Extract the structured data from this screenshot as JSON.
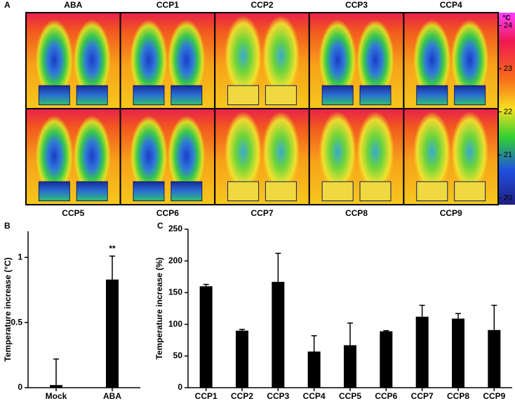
{
  "panel_a": {
    "label": "A",
    "top_labels": [
      "ABA",
      "CCP1",
      "CCP2",
      "CCP3",
      "CCP4"
    ],
    "bottom_labels": [
      "CCP5",
      "CCP6",
      "CCP7",
      "CCP8",
      "CCP9"
    ],
    "colorbar": {
      "unit": "°C",
      "lim": [
        19.85,
        24.3
      ],
      "ticks": [
        24,
        23,
        22,
        21,
        20
      ]
    }
  },
  "chart_data": [
    {
      "panel": "B",
      "type": "bar",
      "ylabel": "Temperature increase (°C)",
      "categories": [
        "Mock",
        "ABA"
      ],
      "values": [
        0.02,
        0.83
      ],
      "errors": [
        0.2,
        0.18
      ],
      "annotations": [
        {
          "text": "**",
          "x": "ABA"
        }
      ],
      "color": "#000000",
      "ylim": [
        0,
        1.2
      ],
      "yticks": [
        0,
        0.5,
        1
      ]
    },
    {
      "panel": "C",
      "type": "bar",
      "ylabel": "Temperature increase (%)",
      "categories": [
        "CCP1",
        "CCP2",
        "CCP3",
        "CCP4",
        "CCP5",
        "CCP6",
        "CCP7",
        "CCP8",
        "CCP9"
      ],
      "values": [
        160,
        90,
        167,
        57,
        67,
        89,
        112,
        109,
        91
      ],
      "errors": [
        3,
        2,
        45,
        25,
        35,
        1,
        18,
        8,
        39
      ],
      "color": "#000000",
      "ylim": [
        0,
        250
      ],
      "yticks": [
        0,
        50,
        100,
        150,
        200,
        250
      ]
    }
  ]
}
